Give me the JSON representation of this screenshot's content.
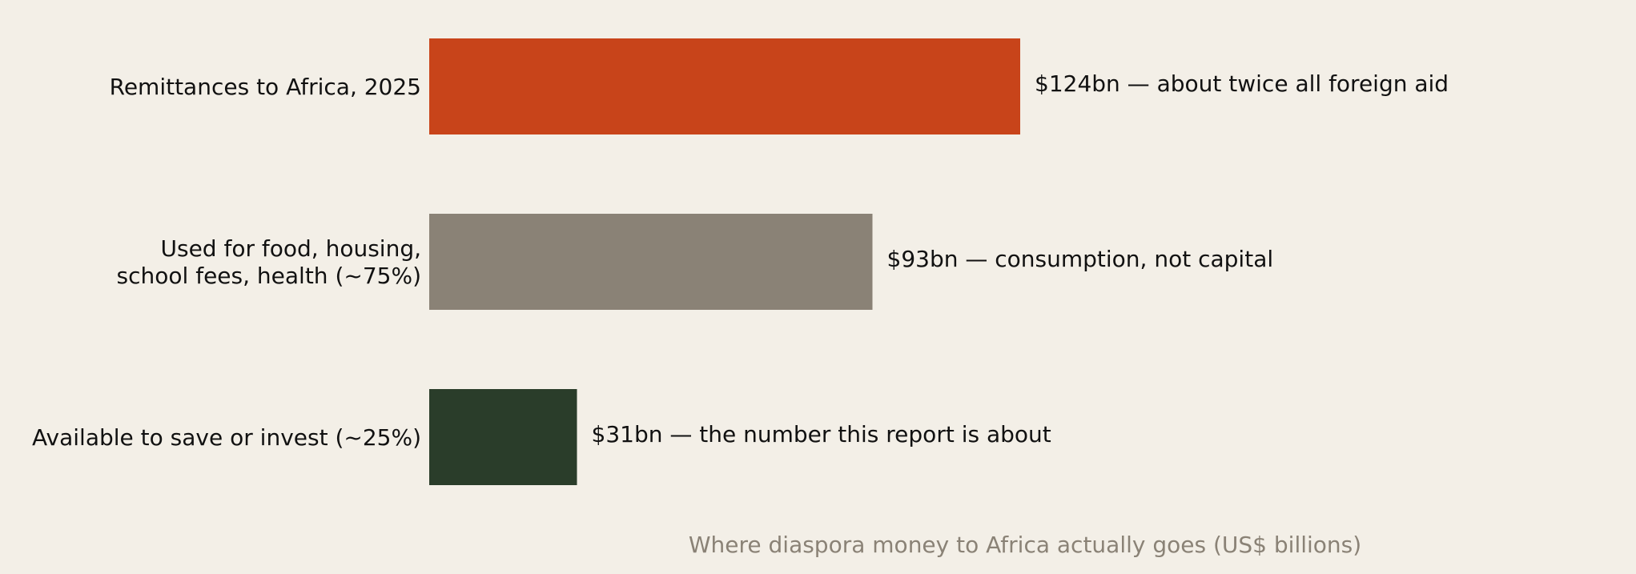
{
  "chart_data": {
    "type": "barh",
    "title": "Where diaspora money to Africa actually goes (US$ billions)",
    "categories": [
      "Remittances to Africa, 2025",
      "Used for food, housing,\nschool fees, health (~75%)",
      "Available to save or invest (~25%)"
    ],
    "values": [
      124,
      93,
      31
    ],
    "value_labels": [
      "$124bn — about twice all foreign aid",
      "$93bn — consumption, not capital",
      "$31bn — the number this report is about"
    ],
    "colors": [
      "#c8441a",
      "#8a8276",
      "#2a3d2a"
    ],
    "grid": false
  }
}
